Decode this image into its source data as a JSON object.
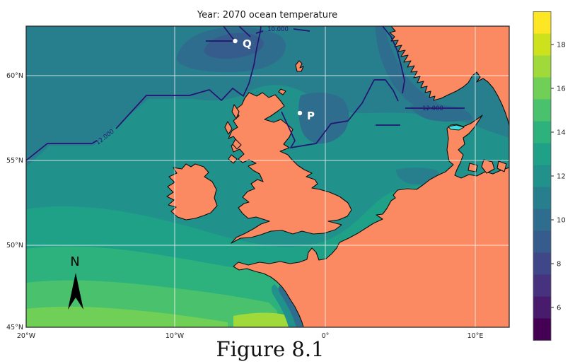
{
  "title": "Year: 2070 ocean temperature",
  "caption": "Figure 8.1",
  "map": {
    "north_arrow_label": "N",
    "points": [
      {
        "label": "Q"
      },
      {
        "label": "P"
      }
    ],
    "contour_labels": {
      "west_12": "12.000",
      "norway_12": "12.000",
      "top_10": "10.000"
    }
  },
  "axes": {
    "lat": [
      {
        "label": "60°N"
      },
      {
        "label": "55°N"
      },
      {
        "label": "50°N"
      },
      {
        "label": "45°N"
      }
    ],
    "lon": [
      {
        "label": "20°W"
      },
      {
        "label": "10°W"
      },
      {
        "label": "0°"
      },
      {
        "label": "10°E"
      }
    ]
  },
  "colorbar": {
    "band_colors_top_to_bottom": [
      "#fde725",
      "#cde11d",
      "#9fda3a",
      "#70cf57",
      "#4ac16d",
      "#2db27d",
      "#1fa188",
      "#21918c",
      "#277f8e",
      "#2e6d8e",
      "#365c8d",
      "#3f4788",
      "#46327e",
      "#481b6d",
      "#440154"
    ],
    "ticks": [
      {
        "value": 18,
        "label": "18"
      },
      {
        "value": 16,
        "label": "16"
      },
      {
        "value": 14,
        "label": "14"
      },
      {
        "value": 12,
        "label": "12"
      },
      {
        "value": 10,
        "label": "10"
      },
      {
        "value": 8,
        "label": "8"
      },
      {
        "value": 6,
        "label": "6"
      }
    ],
    "value_range": [
      4.5,
      19.5
    ]
  },
  "colors": {
    "land": "#fb8a63",
    "coastline": "#0d0d0d",
    "ocean_base": "#21918c",
    "contour_line": "#251472",
    "lake_cyan": "#40dfe0",
    "gridline": "#ffffff"
  },
  "chart_data": {
    "type": "heatmap",
    "subtype": "filled-contour-map",
    "title": "Year: 2070 ocean temperature",
    "caption": "Figure 8.1",
    "variable": "ocean temperature",
    "colormap": "viridis",
    "colorbar_ticks": [
      6,
      8,
      10,
      12,
      14,
      16,
      18
    ],
    "colorbar_range": [
      4.5,
      19.5
    ],
    "colorbar_band_interval": 1,
    "map_extent": {
      "lon": [
        -20,
        12.3
      ],
      "lat": [
        45,
        62.8
      ]
    },
    "gridlines": {
      "lon": [
        -20,
        -10,
        0,
        10
      ],
      "lat": [
        45,
        50,
        55,
        60
      ],
      "grid": true
    },
    "contour_lines": [
      {
        "level": 12.0,
        "label": "12.000",
        "locations": [
          "west of Ireland/Scotland",
          "North Sea near Norway"
        ]
      },
      {
        "level": 10.0,
        "label": "10.000",
        "location": "top edge north of Scotland"
      }
    ],
    "marked_points": [
      {
        "label": "Q",
        "lon_est": -6.0,
        "lat_est": 62.0
      },
      {
        "label": "P",
        "lon_est": -1.7,
        "lat_est": 57.8
      }
    ],
    "legend_position": "right-colorbar"
  }
}
